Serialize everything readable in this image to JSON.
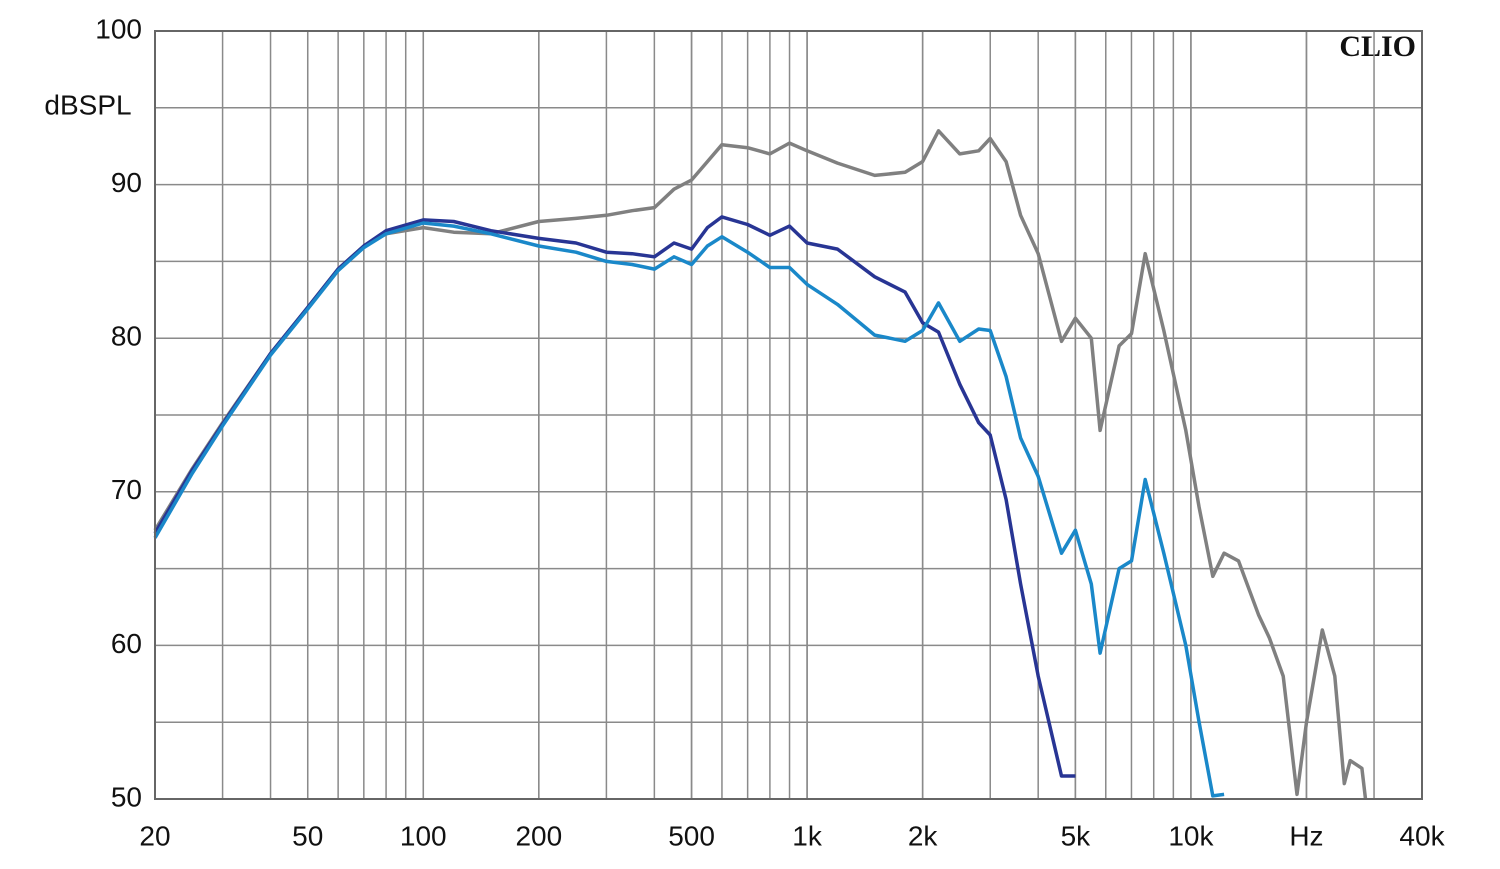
{
  "chart_data": {
    "type": "line",
    "y_label": "dBSPL",
    "annotation": "CLIO",
    "log_x": true,
    "grid": true,
    "minor_grid": true,
    "xlim": [
      20,
      40000
    ],
    "ylim": [
      50,
      100
    ],
    "xticks": [
      20,
      50,
      100,
      200,
      500,
      {
        "value": 1000,
        "label": "1k"
      },
      {
        "value": 2000,
        "label": "2k"
      },
      {
        "value": 5000,
        "label": "5k"
      },
      {
        "value": 10000,
        "label": "10k"
      },
      {
        "value": 20000,
        "label": "Hz"
      },
      {
        "value": 40000,
        "label": "40k"
      }
    ],
    "yticks": [
      50,
      60,
      70,
      80,
      90,
      100
    ],
    "x": [
      20,
      25,
      30,
      40,
      50,
      60,
      70,
      80,
      100,
      120,
      150,
      200,
      250,
      300,
      350,
      400,
      450,
      500,
      550,
      600,
      700,
      800,
      900,
      1000,
      1200,
      1500,
      1800,
      2000,
      2200,
      2500,
      2800,
      3000,
      3300,
      3600,
      4000,
      4600,
      5000,
      5500,
      5800,
      6500,
      7000,
      7600,
      8500,
      9700,
      10500,
      11400,
      12200,
      13300,
      15000,
      16000,
      17400,
      18900,
      20000,
      22000,
      23700,
      25100,
      26000,
      27900,
      28500
    ],
    "series": [
      {
        "color": "#808080",
        "values": [
          67.5,
          71.5,
          74.5,
          79,
          82,
          84.5,
          86,
          86.8,
          87.2,
          86.9,
          86.8,
          87.6,
          87.8,
          88,
          88.3,
          88.5,
          89.7,
          90.3,
          91.5,
          92.6,
          92.4,
          92,
          92.7,
          92.2,
          91.4,
          90.6,
          90.8,
          91.5,
          93.5,
          92,
          92.2,
          93,
          91.5,
          88,
          85.5,
          79.8,
          81.3,
          80,
          74,
          79.5,
          80.3,
          85.5,
          80.5,
          74,
          69,
          64.5,
          66,
          65.5,
          62,
          60.5,
          58,
          50.3,
          55,
          61,
          58,
          51,
          52.5,
          52,
          50
        ]
      },
      {
        "color": "#283594",
        "values": [
          67.3,
          71.4,
          74.4,
          79,
          82,
          84.5,
          86,
          87,
          87.7,
          87.6,
          87,
          86.5,
          86.2,
          85.6,
          85.5,
          85.3,
          86.2,
          85.8,
          87.2,
          87.9,
          87.4,
          86.7,
          87.3,
          86.2,
          85.8,
          84,
          83,
          81,
          80.4,
          77,
          74.5,
          73.7,
          69.5,
          64,
          58,
          51.5,
          51.5,
          null,
          null,
          null,
          null,
          null,
          null,
          null,
          null,
          null,
          null,
          null,
          null,
          null,
          null,
          null,
          null,
          null,
          null,
          null,
          null,
          null,
          null
        ]
      },
      {
        "color": "#1a88c9",
        "values": [
          67,
          71.2,
          74.3,
          78.9,
          81.9,
          84.4,
          85.9,
          86.8,
          87.5,
          87.3,
          86.8,
          86,
          85.6,
          85,
          84.8,
          84.5,
          85.3,
          84.8,
          86,
          86.6,
          85.6,
          84.6,
          84.6,
          83.5,
          82.2,
          80.2,
          79.8,
          80.5,
          82.3,
          79.8,
          80.6,
          80.5,
          77.5,
          73.5,
          71,
          66,
          67.5,
          64,
          59.5,
          65,
          65.5,
          70.8,
          66,
          60,
          55,
          50.2,
          50.3,
          null,
          null,
          null,
          null,
          null,
          null,
          null,
          null,
          null,
          null,
          null,
          null
        ]
      }
    ]
  }
}
